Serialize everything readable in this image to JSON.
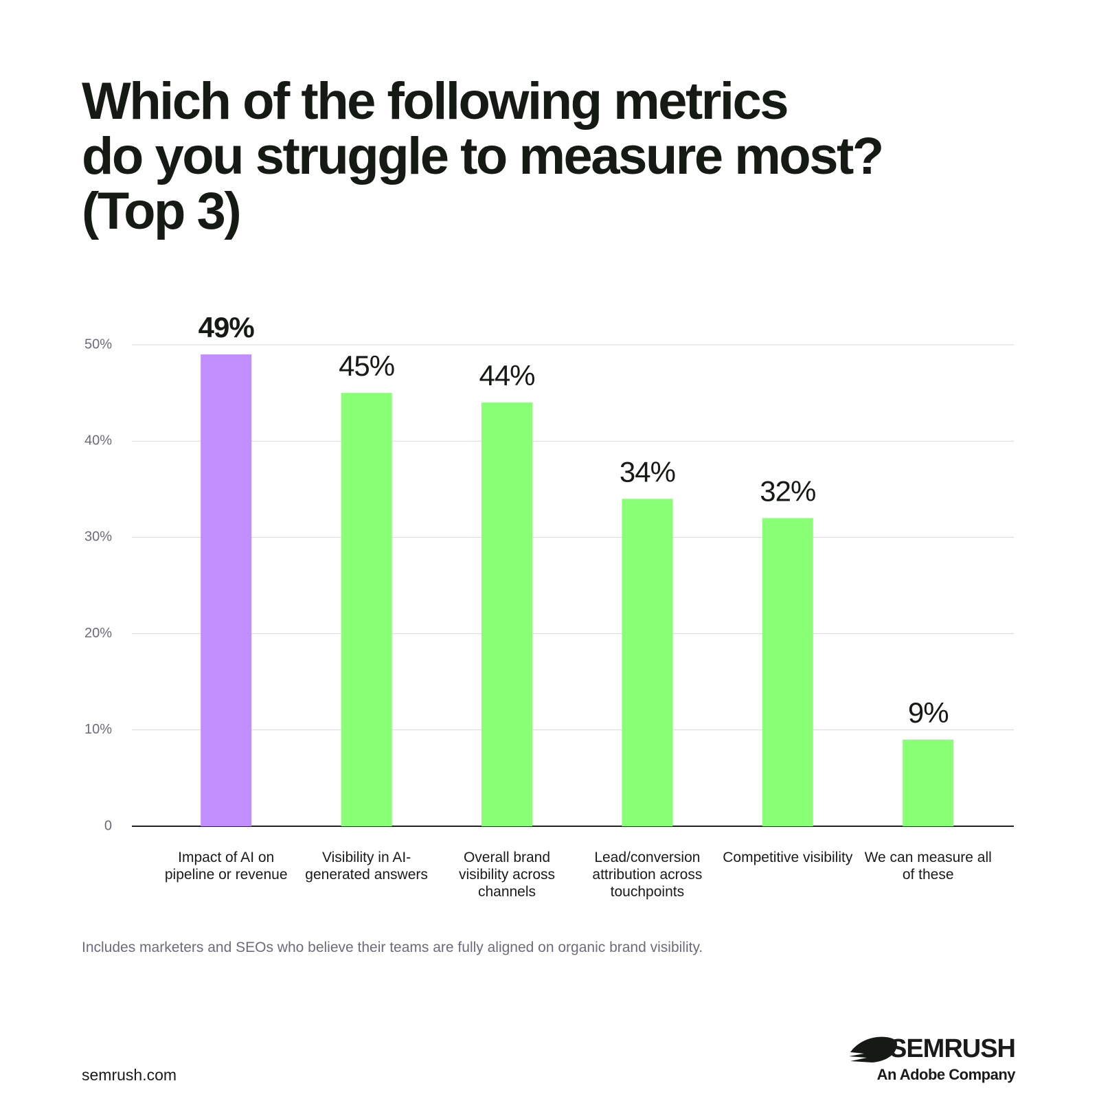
{
  "chart_data": {
    "type": "bar",
    "title": "Which of the following metrics\ndo you struggle to measure most?\n(Top 3)",
    "categories": [
      "Impact of AI on pipeline or revenue",
      "Visibility in AI-generated answers",
      "Overall brand visibility across channels",
      "Lead/conversion attribution across touchpoints",
      "Competitive visibility",
      "We can measure all of these"
    ],
    "values": [
      49,
      45,
      44,
      34,
      32,
      9
    ],
    "value_labels": [
      "49%",
      "45%",
      "44%",
      "34%",
      "32%",
      "9%"
    ],
    "colors": [
      "#c18ffd",
      "#88ff74",
      "#88ff74",
      "#88ff74",
      "#88ff74",
      "#88ff74"
    ],
    "ylim": [
      0,
      50
    ],
    "yticks": [
      0,
      {
        "value": 10,
        "label": "10%"
      },
      {
        "value": 20,
        "label": "20%"
      },
      {
        "value": 30,
        "label": "30%"
      },
      {
        "value": 40,
        "label": "40%"
      },
      {
        "value": 50,
        "label": "50%"
      }
    ],
    "grid": true,
    "footnote": "Includes marketers and SEOs who believe their teams are fully aligned on organic brand visibility.",
    "source": "semrush.com",
    "brand": "SEMRUSH",
    "brand_tagline": "An Adobe Company"
  }
}
